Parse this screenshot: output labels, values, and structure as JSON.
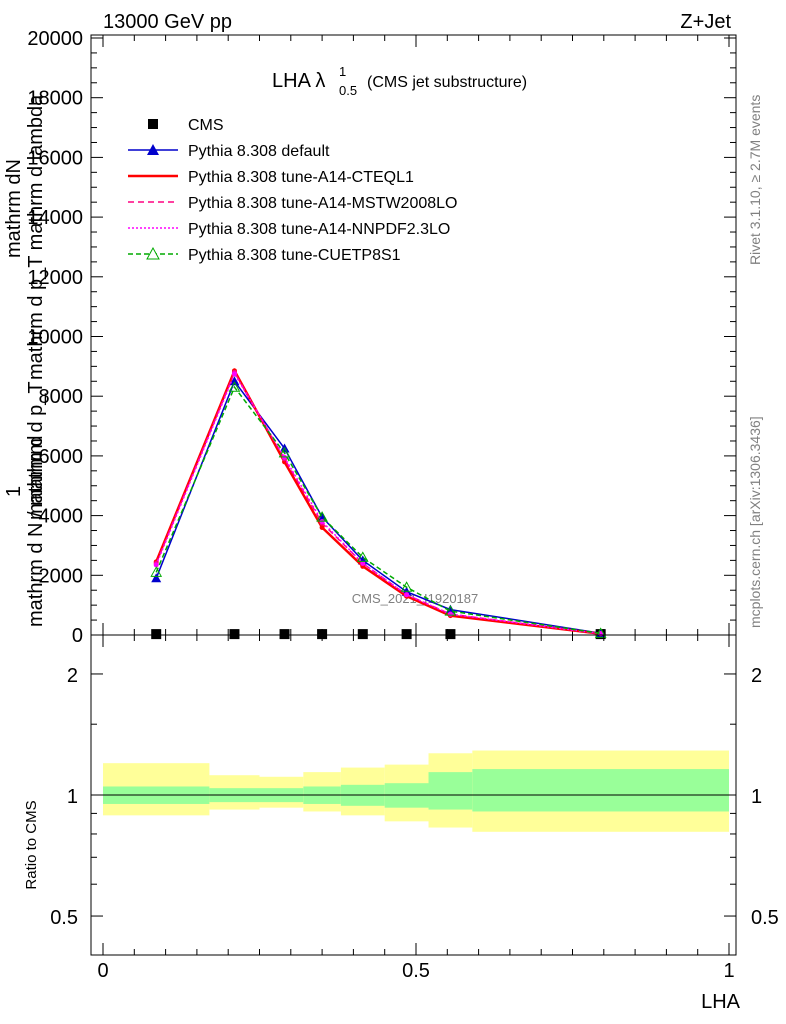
{
  "header": {
    "energy": "13000 GeV pp",
    "process": "Z+Jet"
  },
  "side_labels": {
    "rivet": "Rivet 3.1.10, ≥ 2.7M events",
    "mcplots": "mcplots.cern.ch [arXiv:1306.3436]"
  },
  "watermark": "CMS_2021_I1920187",
  "chart_data": [
    {
      "type": "line",
      "panel": "main",
      "title_main": "LHA λ",
      "title_sup": "1",
      "title_sub": "0.5",
      "title_note": "(CMS jet substructure)",
      "ylabel_one": "1",
      "ylabel_line1": "mathrm d N / mathrm d p_T",
      "ylabel_line2": "mathrm d",
      "ylabel_line3": "mathrm d p_T mathrm d lambda",
      "ylabel_line4": "mathrm dN",
      "xlim": [
        0,
        1
      ],
      "ylim": [
        0,
        20000
      ],
      "yticks": [
        0,
        2000,
        4000,
        6000,
        8000,
        10000,
        12000,
        14000,
        16000,
        18000,
        20000
      ],
      "ytick_labels": [
        "0",
        "2000",
        "4000",
        "6000",
        "8000",
        "10000",
        "12000",
        "14000",
        "16000",
        "18000",
        "20000"
      ],
      "legend_position": "top-left",
      "x": [
        0.085,
        0.21,
        0.29,
        0.35,
        0.415,
        0.485,
        0.555,
        0.795
      ],
      "series": [
        {
          "name": "CMS",
          "color": "#000000",
          "style": "markers",
          "values": [
            30,
            30,
            30,
            30,
            30,
            30,
            30,
            30
          ]
        },
        {
          "name": "Pythia 8.308 default",
          "color": "#0000cc",
          "style": "solid-filled-triangle",
          "values": [
            1900,
            8500,
            6250,
            3950,
            2500,
            1450,
            850,
            60
          ]
        },
        {
          "name": "Pythia 8.308 tune-A14-CTEQL1",
          "color": "#ff0000",
          "style": "solid-thick",
          "values": [
            2450,
            8850,
            5800,
            3600,
            2300,
            1300,
            650,
            40
          ]
        },
        {
          "name": "Pythia 8.308 tune-A14-MSTW2008LO",
          "color": "#ff0080",
          "style": "dashed",
          "values": [
            2400,
            8800,
            5900,
            3750,
            2400,
            1350,
            700,
            45
          ]
        },
        {
          "name": "Pythia 8.308 tune-A14-NNPDF2.3LO",
          "color": "#ff00ff",
          "style": "dotted",
          "values": [
            2350,
            8750,
            5950,
            3800,
            2400,
            1350,
            700,
            45
          ]
        },
        {
          "name": "Pythia 8.308 tune-CUETP8S1",
          "color": "#00aa00",
          "style": "dashed-open-triangle",
          "values": [
            2100,
            8300,
            6100,
            3950,
            2600,
            1600,
            800,
            55
          ]
        }
      ]
    },
    {
      "type": "area",
      "panel": "ratio",
      "ylabel": "Ratio to CMS",
      "xlabel": "LHA",
      "xlim": [
        0,
        1
      ],
      "ylim": [
        0.4,
        2.5
      ],
      "log_y": true,
      "ytick_labels": [
        "0.5",
        "1",
        "2"
      ],
      "yticks": [
        0.5,
        1,
        2
      ],
      "xticks": [
        0,
        0.5,
        1
      ],
      "xtick_labels": [
        "0",
        "0.5",
        "1"
      ],
      "bins": [
        0,
        0.17,
        0.25,
        0.32,
        0.38,
        0.45,
        0.52,
        0.59,
        1.0
      ],
      "band_inner_lo": [
        0.95,
        0.96,
        0.96,
        0.95,
        0.94,
        0.93,
        0.92,
        0.91
      ],
      "band_inner_hi": [
        1.05,
        1.04,
        1.04,
        1.05,
        1.06,
        1.07,
        1.14,
        1.16
      ],
      "band_outer_lo": [
        0.89,
        0.92,
        0.93,
        0.91,
        0.89,
        0.86,
        0.83,
        0.81
      ],
      "band_outer_hi": [
        1.2,
        1.12,
        1.11,
        1.14,
        1.17,
        1.19,
        1.27,
        1.29
      ],
      "inner_color": "#99ff99",
      "outer_color": "#ffff99"
    }
  ]
}
